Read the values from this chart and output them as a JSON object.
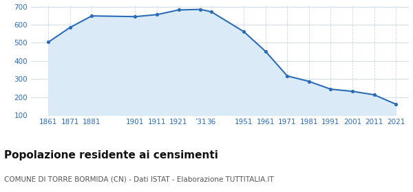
{
  "years": [
    1861,
    1871,
    1881,
    1901,
    1911,
    1921,
    1931,
    1936,
    1951,
    1961,
    1971,
    1981,
    1991,
    2001,
    2011,
    2021
  ],
  "population": [
    504,
    585,
    649,
    645,
    656,
    682,
    685,
    672,
    562,
    453,
    317,
    287,
    244,
    232,
    213,
    161
  ],
  "line_color": "#2b6cb8",
  "fill_color": "#daeaf6",
  "marker_color": "#2b6cb8",
  "background_color": "#ffffff",
  "grid_color": "#c8d8e8",
  "title": "Popolazione residente ai censimenti",
  "subtitle": "COMUNE DI TORRE BORMIDA (CN) - Dati ISTAT - Elaborazione TUTTITALIA.IT",
  "ylim_min": 100,
  "ylim_max": 700,
  "yticks": [
    100,
    200,
    300,
    400,
    500,
    600,
    700
  ],
  "title_fontsize": 11,
  "subtitle_fontsize": 7.5,
  "tick_color": "#2b6cb8",
  "tick_fontsize": 7.5,
  "x_tick_positions": [
    1861,
    1871,
    1881,
    1901,
    1911,
    1921,
    1931,
    1936,
    1951,
    1961,
    1971,
    1981,
    1991,
    2001,
    2011,
    2021
  ],
  "x_tick_labels": [
    "1861",
    "1871",
    "1881",
    "1901",
    "1911",
    "1921",
    "’31",
    "36",
    "1951",
    "1961",
    "1971",
    "1981",
    "1991",
    "2001",
    "2011",
    "2021"
  ]
}
